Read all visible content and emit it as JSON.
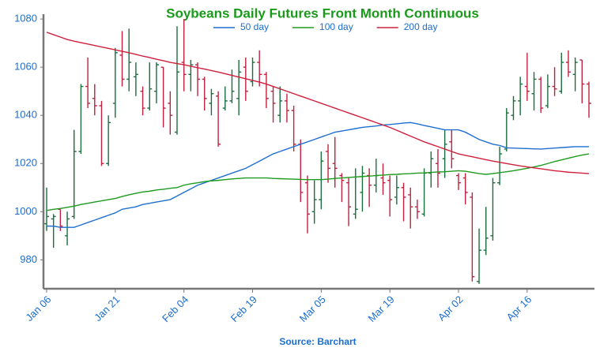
{
  "chart_data": {
    "type": "ohlc",
    "title": "Soybeans Daily Futures Front Month Continuous",
    "source": "Source: Barchart",
    "categories": [
      "Jan 06",
      null,
      null,
      null,
      null,
      null,
      null,
      null,
      null,
      null,
      "Jan 21",
      null,
      null,
      null,
      null,
      null,
      null,
      null,
      null,
      null,
      "Feb 04",
      null,
      null,
      null,
      null,
      null,
      null,
      null,
      null,
      null,
      "Feb 19",
      null,
      null,
      null,
      null,
      null,
      null,
      null,
      null,
      null,
      "Mar 05",
      null,
      null,
      null,
      null,
      null,
      null,
      null,
      null,
      null,
      "Mar 19",
      null,
      null,
      null,
      null,
      null,
      null,
      null,
      null,
      null,
      "Apr 02",
      null,
      null,
      null,
      null,
      null,
      null,
      null,
      null,
      null,
      "Apr 16",
      null,
      null,
      null,
      null,
      null,
      null,
      null,
      null,
      null
    ],
    "open": [
      995,
      997,
      1001,
      990,
      998,
      1025,
      1052,
      1047,
      1044,
      1020,
      1045,
      1065,
      1055,
      1056,
      1050,
      1043,
      1050,
      1060,
      1045,
      1033,
      1062,
      1057,
      1061,
      1055,
      1045,
      1048,
      1043,
      1046,
      1047,
      1060,
      1054,
      1062,
      1057,
      1050,
      1040,
      1046,
      1042,
      1028,
      1012,
      1000,
      1005,
      1025,
      1020,
      1015,
      1012,
      999,
      1008,
      1015,
      1011,
      1014,
      1013,
      1006,
      1010,
      1007,
      1002,
      999,
      1016,
      1020,
      1022,
      1029,
      1015,
      1014,
      1006,
      971,
      984,
      990,
      1012,
      1026,
      1040,
      1046,
      1052,
      1049,
      1055,
      1044,
      1052,
      1050,
      1062,
      1057,
      1063,
      1053
    ],
    "high": [
      1010,
      999,
      1001,
      1000,
      1034,
      1053,
      1064,
      1053,
      1046,
      1040,
      1068,
      1075,
      1076,
      1062,
      1052,
      1062,
      1062,
      1060,
      1050,
      1077,
      1080,
      1063,
      1062,
      1056,
      1051,
      1050,
      1052,
      1059,
      1063,
      1064,
      1064,
      1067,
      1058,
      1052,
      1052,
      1049,
      1044,
      1030,
      1015,
      1013,
      1025,
      1028,
      1031,
      1016,
      1014,
      1018,
      1019,
      1018,
      1022,
      1020,
      1015,
      1015,
      1012,
      1010,
      1005,
      1018,
      1025,
      1026,
      1034,
      1034,
      1016,
      1016,
      1008,
      993,
      1002,
      1014,
      1027,
      1043,
      1048,
      1056,
      1066,
      1058,
      1056,
      1057,
      1060,
      1066,
      1067,
      1064,
      1063,
      1054
    ],
    "low": [
      992,
      985,
      992,
      986,
      997,
      1024,
      1043,
      1040,
      1019,
      1019,
      1039,
      1052,
      1050,
      1048,
      1040,
      1042,
      1045,
      1035,
      1032,
      1032,
      1050,
      1050,
      1048,
      1042,
      1040,
      1027,
      1042,
      1045,
      1040,
      1046,
      1052,
      1052,
      1043,
      1037,
      1037,
      1037,
      1025,
      1004,
      991,
      995,
      1001,
      1012,
      1010,
      1004,
      994,
      997,
      1000,
      1002,
      1008,
      1007,
      998,
      1003,
      996,
      993,
      997,
      998,
      1010,
      1010,
      1014,
      1018,
      1009,
      1003,
      971,
      970,
      982,
      988,
      1011,
      1025,
      1038,
      1040,
      1046,
      1042,
      1041,
      1043,
      1048,
      1049,
      1056,
      1050,
      1045,
      1039
    ],
    "close": [
      998,
      998,
      994,
      997,
      1025,
      1052,
      1045,
      1044,
      1020,
      1037,
      1066,
      1055,
      1062,
      1057,
      1043,
      1051,
      1061,
      1043,
      1040,
      1058,
      1057,
      1061,
      1055,
      1047,
      1049,
      1028,
      1046,
      1050,
      1058,
      1050,
      1062,
      1057,
      1047,
      1045,
      1046,
      1042,
      1028,
      1008,
      999,
      1005,
      1021,
      1018,
      1018,
      1013,
      1002,
      1001,
      1016,
      1011,
      1015,
      1012,
      1005,
      1010,
      1006,
      1002,
      1000,
      1016,
      1022,
      1016,
      1028,
      1022,
      1012,
      1008,
      973,
      984,
      989,
      1012,
      1024,
      1041,
      1046,
      1053,
      1050,
      1055,
      1043,
      1052,
      1051,
      1062,
      1058,
      1062,
      1053,
      1045
    ],
    "up_color": "#1a6e3c",
    "down_color": "#c0213f",
    "series": [
      {
        "name": "50 day",
        "color": "#1f6fd0",
        "values": [
          994,
          994,
          993.5,
          993.5,
          993.5,
          994.5,
          995.5,
          996.5,
          997.5,
          998.5,
          999.5,
          1001,
          1001.5,
          1002,
          1003,
          1003.5,
          1004,
          1004.5,
          1005,
          1006.5,
          1008,
          1009.5,
          1011,
          1012,
          1013,
          1014,
          1015,
          1016,
          1017,
          1018,
          1019.5,
          1021,
          1022.5,
          1024,
          1025,
          1026,
          1027,
          1028,
          1029,
          1030,
          1031,
          1032,
          1033,
          1033.5,
          1034,
          1034.5,
          1035,
          1035.3,
          1035.6,
          1036,
          1036.2,
          1036.5,
          1036.8,
          1037,
          1036.5,
          1035.8,
          1035.2,
          1034.6,
          1034,
          1034,
          1034,
          1033,
          1031.5,
          1030,
          1029,
          1028,
          1027.5,
          1026.5,
          1026.4,
          1026.3,
          1026.2,
          1026.1,
          1026,
          1026.2,
          1026.4,
          1026.6,
          1026.8,
          1027,
          1027,
          1027
        ]
      },
      {
        "name": "100 day",
        "color": "#1e9a1e",
        "values": [
          1000.5,
          1001,
          1001.3,
          1001.8,
          1002.3,
          1003,
          1003.5,
          1004,
          1004.5,
          1005,
          1005.5,
          1006.3,
          1007,
          1007.6,
          1008.2,
          1008.5,
          1009,
          1009.3,
          1009.7,
          1010,
          1011,
          1011.6,
          1012,
          1012.5,
          1012.8,
          1013,
          1013.3,
          1013.6,
          1013.8,
          1014,
          1014,
          1014,
          1014,
          1013.8,
          1013.7,
          1013.6,
          1013.5,
          1013.4,
          1013.3,
          1013.3,
          1013.3,
          1013.5,
          1013.8,
          1014,
          1014.2,
          1014.4,
          1014.6,
          1014.8,
          1015,
          1015.2,
          1015.4,
          1015.5,
          1015.7,
          1015.8,
          1016,
          1016.1,
          1016.3,
          1016.5,
          1016.6,
          1016.8,
          1017,
          1016.8,
          1016.3,
          1015.8,
          1015.5,
          1015.8,
          1016.2,
          1016.6,
          1017,
          1017.5,
          1018,
          1018.6,
          1019.2,
          1020,
          1020.8,
          1021.5,
          1022.2,
          1022.9,
          1023.5,
          1024
        ]
      },
      {
        "name": "200 day",
        "color": "#d0203c",
        "values": [
          1074.5,
          1073.5,
          1072.5,
          1071.5,
          1070.8,
          1070.2,
          1069.6,
          1069,
          1068.4,
          1067.8,
          1067.2,
          1066.6,
          1066,
          1065.3,
          1064.6,
          1064,
          1063.3,
          1062.7,
          1062,
          1061.5,
          1061,
          1060.4,
          1059.8,
          1059.2,
          1058.6,
          1058,
          1057.3,
          1056.6,
          1055.9,
          1055.2,
          1054.5,
          1053.8,
          1053,
          1052,
          1051,
          1050,
          1049,
          1048,
          1047,
          1046,
          1045,
          1044,
          1043,
          1042,
          1041,
          1040,
          1039,
          1038,
          1037,
          1036,
          1035,
          1033.8,
          1032.6,
          1031.4,
          1030.2,
          1029,
          1028,
          1027,
          1026,
          1025,
          1024,
          1023.4,
          1022.8,
          1022.2,
          1021.6,
          1021,
          1020.5,
          1020,
          1019.5,
          1019,
          1018.6,
          1018.2,
          1017.8,
          1017.4,
          1017,
          1016.7,
          1016.4,
          1016.2,
          1016,
          1015.8
        ]
      }
    ],
    "ylim": [
      968,
      1082
    ],
    "yticks": [
      980,
      1000,
      1020,
      1040,
      1060,
      1080
    ],
    "legend": "top"
  }
}
